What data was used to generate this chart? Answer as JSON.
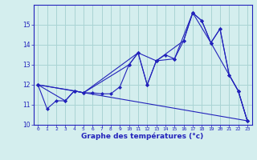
{
  "xlabel": "Graphe des températures (°c)",
  "background_color": "#d4eeee",
  "grid_color": "#aad4d4",
  "line_color": "#2222bb",
  "marker_color": "#2222bb",
  "xlim": [
    -0.5,
    23.5
  ],
  "ylim": [
    10,
    16
  ],
  "yticks": [
    10,
    11,
    12,
    13,
    14,
    15
  ],
  "xticks": [
    0,
    1,
    2,
    3,
    4,
    5,
    6,
    7,
    8,
    9,
    10,
    11,
    12,
    13,
    14,
    15,
    16,
    17,
    18,
    19,
    20,
    21,
    22,
    23
  ],
  "series1": [
    [
      0,
      12.0
    ],
    [
      1,
      10.8
    ],
    [
      2,
      11.2
    ],
    [
      3,
      11.2
    ],
    [
      4,
      11.7
    ],
    [
      5,
      11.6
    ],
    [
      6,
      11.6
    ],
    [
      7,
      11.55
    ],
    [
      8,
      11.55
    ],
    [
      9,
      11.9
    ],
    [
      10,
      13.0
    ],
    [
      11,
      13.6
    ],
    [
      12,
      12.0
    ],
    [
      13,
      13.2
    ],
    [
      14,
      13.5
    ],
    [
      15,
      13.3
    ],
    [
      16,
      14.2
    ],
    [
      17,
      15.6
    ],
    [
      18,
      15.2
    ],
    [
      19,
      14.1
    ],
    [
      20,
      14.8
    ],
    [
      21,
      12.5
    ],
    [
      22,
      11.7
    ],
    [
      23,
      10.2
    ]
  ],
  "series2": [
    [
      0,
      12.0
    ],
    [
      3,
      11.2
    ],
    [
      4,
      11.7
    ],
    [
      5,
      11.6
    ],
    [
      10,
      13.0
    ],
    [
      11,
      13.6
    ],
    [
      13,
      13.2
    ],
    [
      16,
      14.2
    ],
    [
      17,
      15.6
    ],
    [
      18,
      15.2
    ],
    [
      19,
      14.1
    ],
    [
      22,
      11.7
    ],
    [
      23,
      10.2
    ]
  ],
  "series3": [
    [
      0,
      12.0
    ],
    [
      4,
      11.7
    ],
    [
      5,
      11.6
    ],
    [
      11,
      13.6
    ],
    [
      12,
      12.0
    ],
    [
      13,
      13.2
    ],
    [
      15,
      13.3
    ],
    [
      17,
      15.6
    ],
    [
      19,
      14.1
    ],
    [
      20,
      14.8
    ],
    [
      21,
      12.5
    ],
    [
      22,
      11.7
    ],
    [
      23,
      10.2
    ]
  ],
  "series4": [
    [
      0,
      12.0
    ],
    [
      23,
      10.2
    ]
  ]
}
